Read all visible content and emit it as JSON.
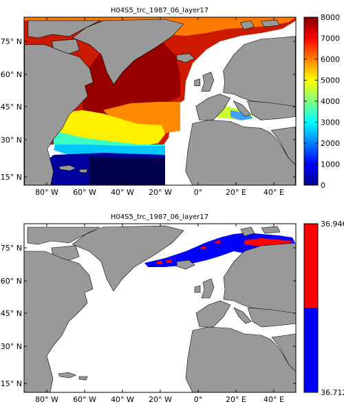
{
  "panels": [
    {
      "title": "H04S5_trc_1987_06_layer17",
      "colorbar": {
        "type": "jet",
        "min": 0,
        "max": 8000,
        "tick_labels": [
          "0",
          "1000",
          "2000",
          "3000",
          "4000",
          "5000",
          "6000",
          "7000",
          "8000"
        ]
      }
    },
    {
      "title": "H04S5_trc_1987_06_layer17",
      "colorbar": {
        "type": "binary",
        "min": 36.712,
        "max": 36.946,
        "tick_labels": [
          "36.946",
          "36.712"
        ],
        "colors": [
          "#ff0000",
          "#0000ff"
        ]
      }
    }
  ],
  "lat_labels": [
    "75° N",
    "60° N",
    "45° N",
    "30° N",
    "15° N"
  ],
  "lon_labels": [
    "80° W",
    "60° W",
    "40° W",
    "20° W",
    "0°",
    "20° E",
    "40° E"
  ],
  "colors": {
    "land": "#999999",
    "nodata": "#ffffff",
    "frame": "#000000"
  }
}
